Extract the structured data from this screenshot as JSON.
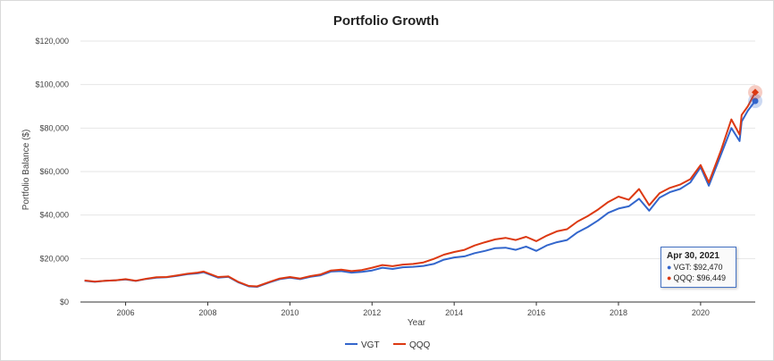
{
  "chart_data": {
    "type": "line",
    "title": "Portfolio Growth",
    "xlabel": "Year",
    "ylabel": "Portfolio Balance ($)",
    "xlim": [
      2004.9,
      2021.33
    ],
    "ylim": [
      0,
      120000
    ],
    "x_ticks": [
      "2006",
      "2008",
      "2010",
      "2012",
      "2014",
      "2016",
      "2018",
      "2020"
    ],
    "x_tick_values": [
      2006,
      2008,
      2010,
      2012,
      2014,
      2016,
      2018,
      2020
    ],
    "y_ticks": [
      "$0",
      "$20,000",
      "$40,000",
      "$60,000",
      "$80,000",
      "$100,000",
      "$120,000"
    ],
    "y_tick_values": [
      0,
      20000,
      40000,
      60000,
      80000,
      100000,
      120000
    ],
    "grid": true,
    "legend_position": "bottom",
    "x": [
      2005.0,
      2005.25,
      2005.5,
      2005.75,
      2006.0,
      2006.25,
      2006.5,
      2006.75,
      2007.0,
      2007.25,
      2007.5,
      2007.75,
      2007.9,
      2008.25,
      2008.5,
      2008.75,
      2009.0,
      2009.2,
      2009.5,
      2009.75,
      2010.0,
      2010.25,
      2010.5,
      2010.75,
      2011.0,
      2011.25,
      2011.5,
      2011.75,
      2012.0,
      2012.25,
      2012.5,
      2012.75,
      2013.0,
      2013.25,
      2013.5,
      2013.75,
      2014.0,
      2014.25,
      2014.5,
      2014.75,
      2015.0,
      2015.25,
      2015.5,
      2015.75,
      2016.0,
      2016.25,
      2016.5,
      2016.75,
      2017.0,
      2017.25,
      2017.5,
      2017.75,
      2018.0,
      2018.25,
      2018.5,
      2018.75,
      2019.0,
      2019.25,
      2019.5,
      2019.75,
      2020.0,
      2020.2,
      2020.5,
      2020.75,
      2020.95,
      2021.0,
      2021.15,
      2021.33
    ],
    "series": [
      {
        "name": "VGT",
        "color": "#3366cc",
        "values": [
          9800,
          9300,
          9800,
          10000,
          10400,
          9700,
          10600,
          11200,
          11400,
          12000,
          12800,
          13200,
          13700,
          11200,
          11600,
          9000,
          7200,
          7000,
          9000,
          10500,
          11200,
          10500,
          11600,
          12300,
          14000,
          14200,
          13500,
          13900,
          14500,
          15800,
          15200,
          16000,
          16200,
          16600,
          17500,
          19500,
          20500,
          21000,
          22500,
          23500,
          24800,
          25000,
          24000,
          25500,
          23500,
          26000,
          27500,
          28500,
          32000,
          34500,
          37500,
          41000,
          43000,
          44000,
          47500,
          42000,
          48000,
          50500,
          52000,
          55000,
          62000,
          53500,
          68000,
          80000,
          74000,
          83000,
          88000,
          92470
        ]
      },
      {
        "name": "QQQ",
        "color": "#dc3912",
        "values": [
          9900,
          9400,
          9800,
          10000,
          10500,
          9800,
          10700,
          11400,
          11500,
          12200,
          13000,
          13500,
          14000,
          11500,
          11800,
          9200,
          7400,
          7200,
          9200,
          10800,
          11500,
          10800,
          11900,
          12700,
          14500,
          14900,
          14200,
          14700,
          15800,
          17000,
          16500,
          17200,
          17500,
          18200,
          19800,
          21800,
          23000,
          24000,
          26000,
          27500,
          28800,
          29500,
          28500,
          30000,
          28000,
          30500,
          32500,
          33500,
          37000,
          39500,
          42500,
          46000,
          48500,
          47000,
          52000,
          44500,
          50000,
          52500,
          54000,
          56500,
          63000,
          55000,
          70000,
          84000,
          77000,
          86000,
          90000,
          96449
        ]
      }
    ],
    "tooltip": {
      "date": "Apr 30, 2021",
      "lines": [
        "VGT: $92,470",
        "QQQ: $96,449"
      ]
    }
  }
}
